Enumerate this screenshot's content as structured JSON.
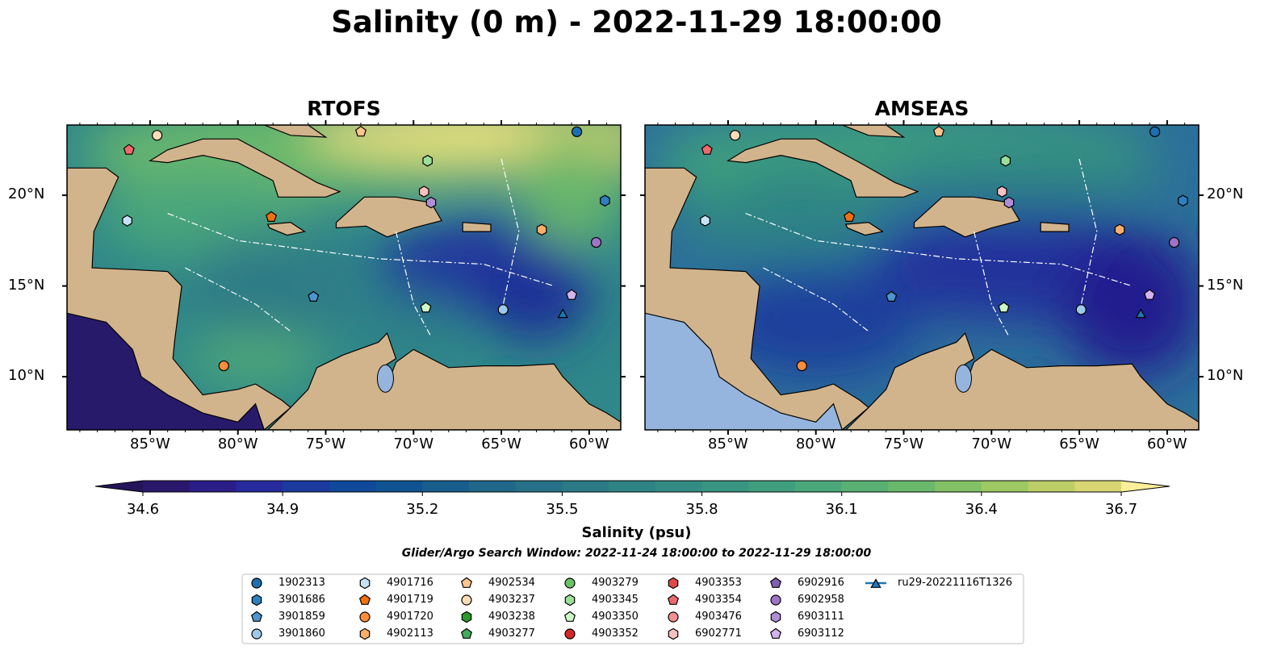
{
  "title": "Salinity (0 m) - 2022-11-29 18:00:00",
  "chart_data": {
    "type": "map",
    "panels": [
      {
        "title": "RTOFS"
      },
      {
        "title": "AMSEAS"
      }
    ],
    "lon_ticks": [
      -85,
      -80,
      -75,
      -70,
      -65,
      -60
    ],
    "lon_tick_labels": [
      "85°W",
      "80°W",
      "75°W",
      "70°W",
      "65°W",
      "60°W"
    ],
    "lat_ticks": [
      10,
      15,
      20
    ],
    "lat_tick_labels": [
      "10°N",
      "15°N",
      "20°N"
    ],
    "lon_range": [
      -89.73,
      -58.2
    ],
    "lat_range": [
      7.07,
      23.87
    ],
    "colorbar": {
      "label": "Salinity (psu)",
      "range": [
        34.6,
        36.7
      ],
      "step": 0.1,
      "extend": "both",
      "ticks": [
        34.6,
        34.9,
        35.2,
        35.5,
        35.8,
        36.1,
        36.4,
        36.7
      ],
      "tick_labels": [
        "34.6",
        "34.9",
        "35.2",
        "35.5",
        "35.8",
        "36.1",
        "36.4",
        "36.7"
      ],
      "colors": [
        "#2a186c",
        "#2b1d88",
        "#262a9c",
        "#1a3a9e",
        "#10489a",
        "#0f5492",
        "#175e8d",
        "#1f688a",
        "#267187",
        "#2b7a86",
        "#2f8385",
        "#338c84",
        "#389581",
        "#3f9e7e",
        "#4aa779",
        "#58b072",
        "#6ab86b",
        "#82c065",
        "#9dc862",
        "#bbce67",
        "#d8d674",
        "#eedf82"
      ],
      "under_color": "#25145a",
      "over_color": "#fdef9a"
    },
    "search_window": "Glider/Argo Search Window: 2022-11-24 18:00:00 to 2022-11-29 18:00:00",
    "legend": [
      {
        "id": "1902313",
        "shape": "circle",
        "color": "#1f6eb0"
      },
      {
        "id": "3901686",
        "shape": "hexagon",
        "color": "#2f7fc0"
      },
      {
        "id": "3901859",
        "shape": "pentagon",
        "color": "#4d95cc"
      },
      {
        "id": "3901860",
        "shape": "circle",
        "color": "#9ecae9"
      },
      {
        "id": "4901716",
        "shape": "hexagon",
        "color": "#c6e2f7"
      },
      {
        "id": "4901719",
        "shape": "pentagon",
        "color": "#f07010"
      },
      {
        "id": "4901720",
        "shape": "circle",
        "color": "#fd8d3c"
      },
      {
        "id": "4902113",
        "shape": "hexagon",
        "color": "#fdae6b"
      },
      {
        "id": "4902534",
        "shape": "pentagon",
        "color": "#fdc48e"
      },
      {
        "id": "4903237",
        "shape": "circle",
        "color": "#fddcb8"
      },
      {
        "id": "4903238",
        "shape": "hexagon",
        "color": "#2a9a2a"
      },
      {
        "id": "4903277",
        "shape": "pentagon",
        "color": "#41ab5d"
      },
      {
        "id": "4903279",
        "shape": "circle",
        "color": "#6cc26a"
      },
      {
        "id": "4903345",
        "shape": "hexagon",
        "color": "#9be09a"
      },
      {
        "id": "4903350",
        "shape": "pentagon",
        "color": "#cdf7c6"
      },
      {
        "id": "4903352",
        "shape": "circle",
        "color": "#d62728"
      },
      {
        "id": "4903353",
        "shape": "hexagon",
        "color": "#e04848"
      },
      {
        "id": "4903354",
        "shape": "pentagon",
        "color": "#ee6a6a"
      },
      {
        "id": "4903476",
        "shape": "circle",
        "color": "#f09090"
      },
      {
        "id": "6902771",
        "shape": "hexagon",
        "color": "#fbc0c0"
      },
      {
        "id": "6902916",
        "shape": "pentagon",
        "color": "#8060b0"
      },
      {
        "id": "6902958",
        "shape": "circle",
        "color": "#9e74c8"
      },
      {
        "id": "6903111",
        "shape": "hexagon",
        "color": "#b08ed6"
      },
      {
        "id": "6903112",
        "shape": "pentagon",
        "color": "#d2b4ee"
      },
      {
        "id": "ru29-20221116T1326",
        "shape": "triangle",
        "color": "#1f77b4"
      }
    ],
    "observations": [
      {
        "id": "1902313",
        "lon": -60.7,
        "lat": 23.5
      },
      {
        "id": "4903237",
        "lon": -84.6,
        "lat": 23.3
      },
      {
        "id": "4902534",
        "lon": -73.0,
        "lat": 23.5
      },
      {
        "id": "4903354",
        "lon": -86.2,
        "lat": 22.5
      },
      {
        "id": "4903345",
        "lon": -69.2,
        "lat": 21.9
      },
      {
        "id": "6902771",
        "lon": -69.4,
        "lat": 20.2
      },
      {
        "id": "6903111",
        "lon": -69.0,
        "lat": 19.6
      },
      {
        "id": "3901686",
        "lon": -59.1,
        "lat": 19.7
      },
      {
        "id": "4901716",
        "lon": -86.3,
        "lat": 18.6
      },
      {
        "id": "4901719",
        "lon": -78.1,
        "lat": 18.8
      },
      {
        "id": "4902113",
        "lon": -62.7,
        "lat": 18.1
      },
      {
        "id": "6902958",
        "lon": -59.6,
        "lat": 17.4
      },
      {
        "id": "3901859",
        "lon": -75.7,
        "lat": 14.4
      },
      {
        "id": "6903112",
        "lon": -61.0,
        "lat": 14.5
      },
      {
        "id": "4903350",
        "lon": -69.3,
        "lat": 13.8
      },
      {
        "id": "3901860",
        "lon": -64.9,
        "lat": 13.7
      },
      {
        "id": "ru29-20221116T1326",
        "lon": -61.5,
        "lat": 13.5
      },
      {
        "id": "4901720",
        "lon": -80.8,
        "lat": 10.6
      }
    ]
  }
}
